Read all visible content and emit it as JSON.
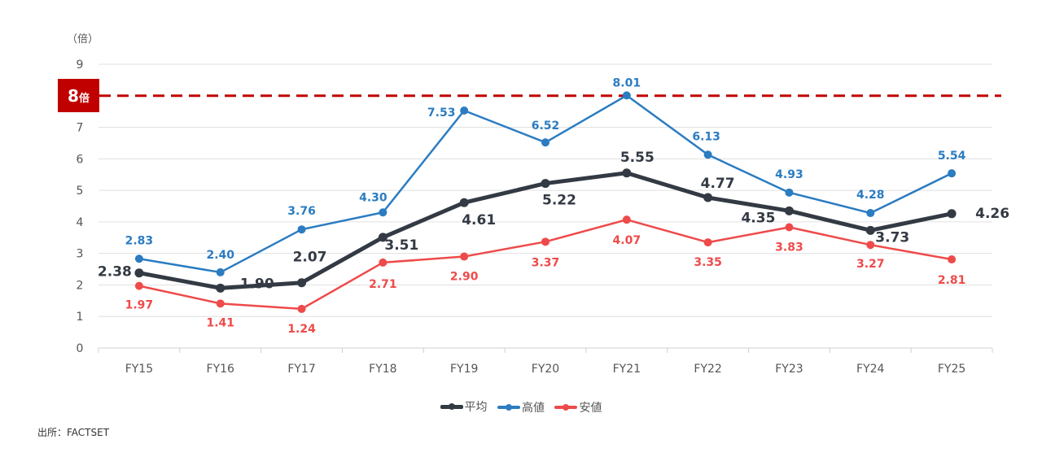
{
  "chart_data": {
    "type": "line",
    "categories": [
      "FY15",
      "FY16",
      "FY17",
      "FY18",
      "FY19",
      "FY20",
      "FY21",
      "FY22",
      "FY23",
      "FY24",
      "FY25"
    ],
    "series": [
      {
        "name": "平均",
        "color": "#333a44",
        "values": [
          2.38,
          1.9,
          2.07,
          3.51,
          4.61,
          5.22,
          5.55,
          4.77,
          4.35,
          3.73,
          4.26
        ],
        "labels": [
          "2.38",
          "1.90",
          "2.07",
          "3.51",
          "4.61",
          "5.22",
          "5.55",
          "4.77",
          "4.35",
          "3.73",
          "4.26"
        ]
      },
      {
        "name": "高値",
        "color": "#2b7cc1",
        "values": [
          2.83,
          2.4,
          3.76,
          4.3,
          7.53,
          6.52,
          8.01,
          6.13,
          4.93,
          4.28,
          5.54
        ],
        "labels": [
          "2.83",
          "2.40",
          "3.76",
          "4.30",
          "7.53",
          "6.52",
          "8.01",
          "6.13",
          "4.93",
          "4.28",
          "5.54"
        ]
      },
      {
        "name": "安値",
        "color": "#ef4a4a",
        "values": [
          1.97,
          1.41,
          1.24,
          2.71,
          2.9,
          3.37,
          4.07,
          3.35,
          3.83,
          3.27,
          2.81
        ],
        "labels": [
          "1.97",
          "1.41",
          "1.24",
          "2.71",
          "2.90",
          "3.37",
          "4.07",
          "3.35",
          "3.83",
          "3.27",
          "2.81"
        ]
      }
    ],
    "yticks": [
      "0",
      "1",
      "2",
      "3",
      "4",
      "5",
      "6",
      "7",
      "9"
    ],
    "ylim": [
      0,
      9
    ],
    "ylabel": "（倍）",
    "reference_line": {
      "value": 8,
      "label_num": "8",
      "label_unit": "倍",
      "color": "#c00000"
    },
    "grid": true,
    "legend_position": "bottom"
  },
  "source": "出所：FACTSET"
}
